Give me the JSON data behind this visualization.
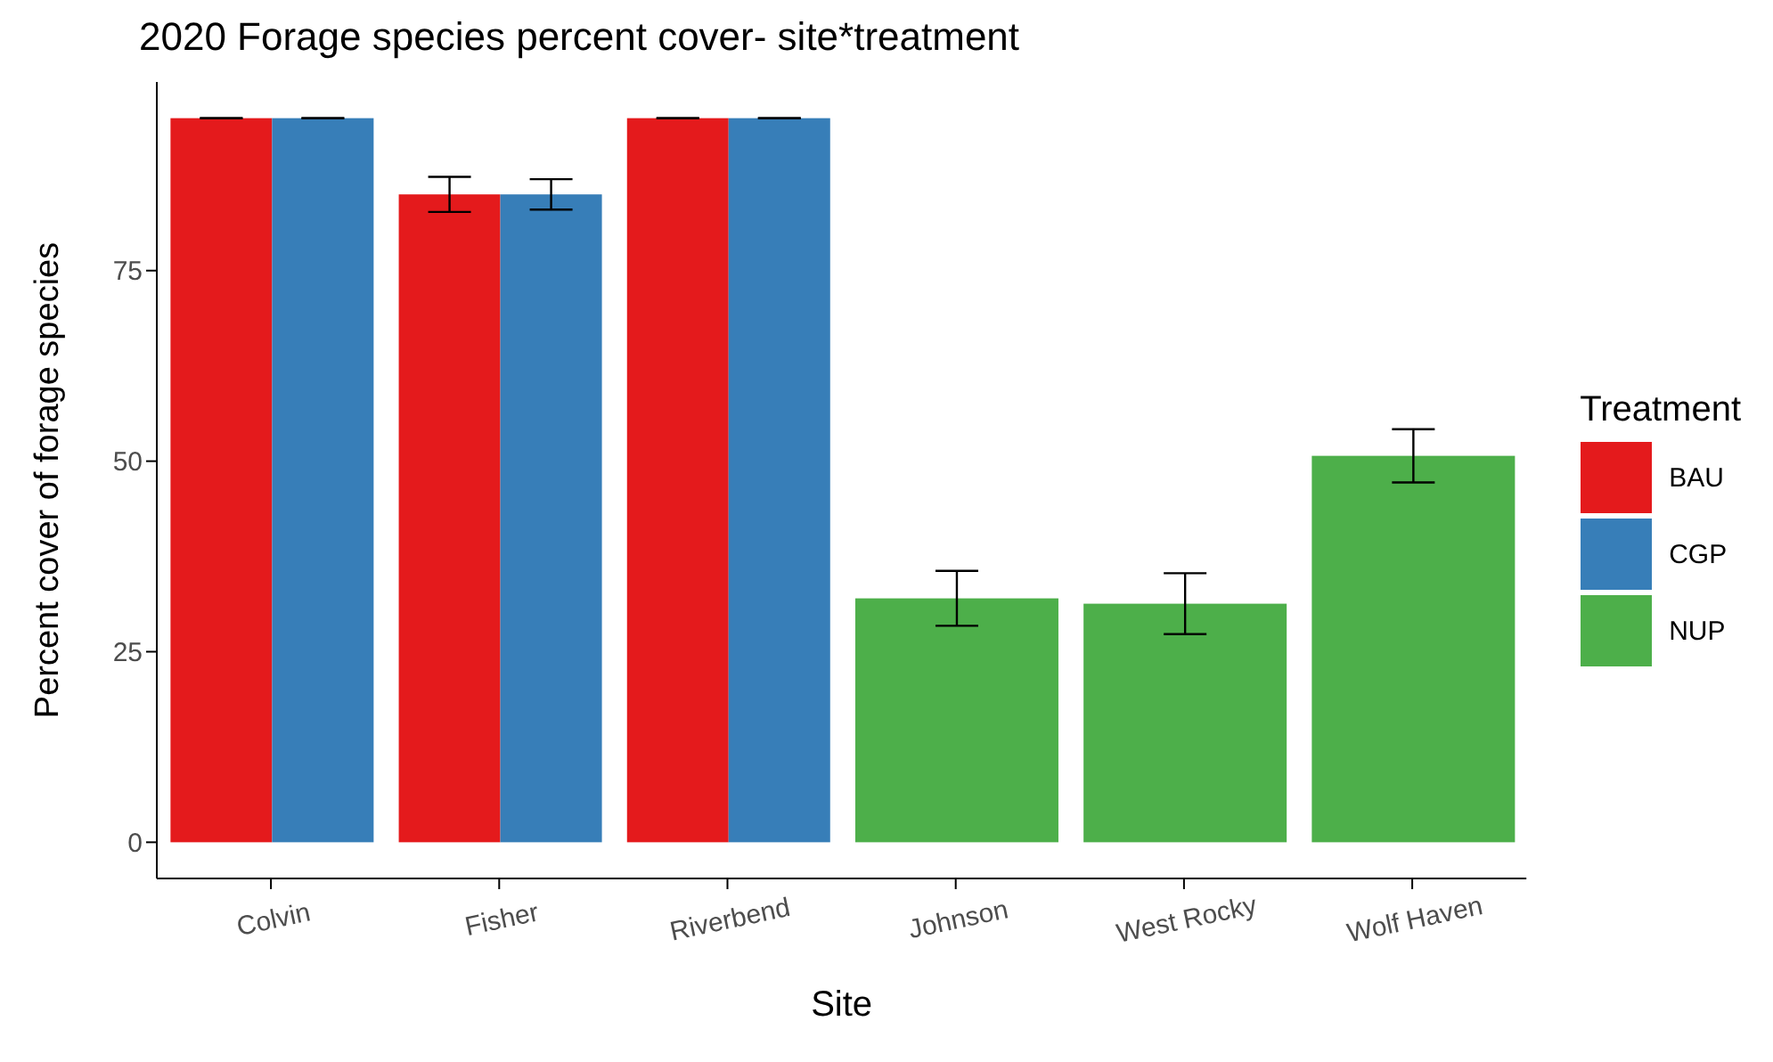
{
  "chart_data": {
    "type": "bar",
    "title": "2020 Forage species percent cover- site*treatment",
    "xlabel": "Site",
    "ylabel": "Percent cover of forage species",
    "legend_title": "Treatment",
    "categories": [
      "Colvin",
      "Fisher",
      "Riverbend",
      "Johnson",
      "West Rocky",
      "Wolf Haven"
    ],
    "series": [
      {
        "name": "BAU",
        "color": "#e41a1c",
        "values": [
          95,
          85,
          95,
          null,
          null,
          null
        ],
        "errors": [
          0,
          2.3,
          0,
          null,
          null,
          null
        ]
      },
      {
        "name": "CGP",
        "color": "#377eb8",
        "values": [
          95,
          85,
          95,
          null,
          null,
          null
        ],
        "errors": [
          0,
          2,
          0,
          null,
          null,
          null
        ]
      },
      {
        "name": "NUP",
        "color": "#4daf4a",
        "values": [
          null,
          null,
          null,
          32,
          31.3,
          50.7
        ],
        "errors": [
          null,
          null,
          null,
          3.6,
          4,
          3.5
        ]
      }
    ],
    "ylim": [
      -4.75,
      99.75
    ],
    "yticks": [
      0,
      25,
      50,
      75
    ],
    "grid": false,
    "legend": "right"
  }
}
